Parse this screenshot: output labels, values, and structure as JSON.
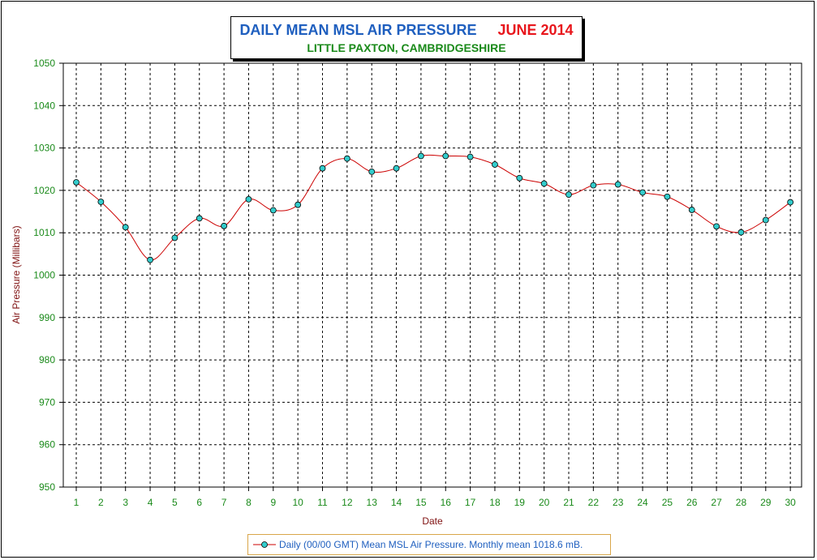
{
  "title": {
    "main": "DAILY MEAN MSL AIR PRESSURE",
    "date": "JUNE 2014",
    "subtitle": "LITTLE PAXTON, CAMBRIDGESHIRE"
  },
  "legend": {
    "label": "Daily (00/00 GMT) Mean MSL Air Pressure. Monthly mean 1018.6 mB."
  },
  "colors": {
    "line": "#cc0000",
    "marker_fill": "#33cccc",
    "grid": "#000000",
    "tick_text": "#1a8a1a",
    "axis_label": "#7f1010"
  },
  "chart_data": {
    "type": "line",
    "title": "DAILY MEAN MSL AIR PRESSURE   JUNE 2014",
    "subtitle": "LITTLE PAXTON, CAMBRIDGESHIRE",
    "xlabel": "Date",
    "ylabel": "Air Pressure (Millibars)",
    "ylim": [
      950,
      1050
    ],
    "yticks": [
      950,
      960,
      970,
      980,
      990,
      1000,
      1010,
      1020,
      1030,
      1040,
      1050
    ],
    "x": [
      1,
      2,
      3,
      4,
      5,
      6,
      7,
      8,
      9,
      10,
      11,
      12,
      13,
      14,
      15,
      16,
      17,
      18,
      19,
      20,
      21,
      22,
      23,
      24,
      25,
      26,
      27,
      28,
      29,
      30
    ],
    "grid": true,
    "legend_position": "bottom-center",
    "series": [
      {
        "name": "Daily (00/00 GMT) Mean MSL Air Pressure. Monthly mean 1018.6 mB.",
        "values": [
          1021.9,
          1017.3,
          1011.3,
          1003.6,
          1008.8,
          1013.4,
          1011.6,
          1017.9,
          1015.3,
          1016.6,
          1025.2,
          1027.5,
          1024.4,
          1025.2,
          1028.1,
          1028.1,
          1027.9,
          1026.1,
          1022.9,
          1021.6,
          1019.0,
          1021.2,
          1021.4,
          1019.5,
          1018.5,
          1015.4,
          1011.5,
          1010.1,
          1013.0,
          1017.2
        ]
      }
    ]
  }
}
